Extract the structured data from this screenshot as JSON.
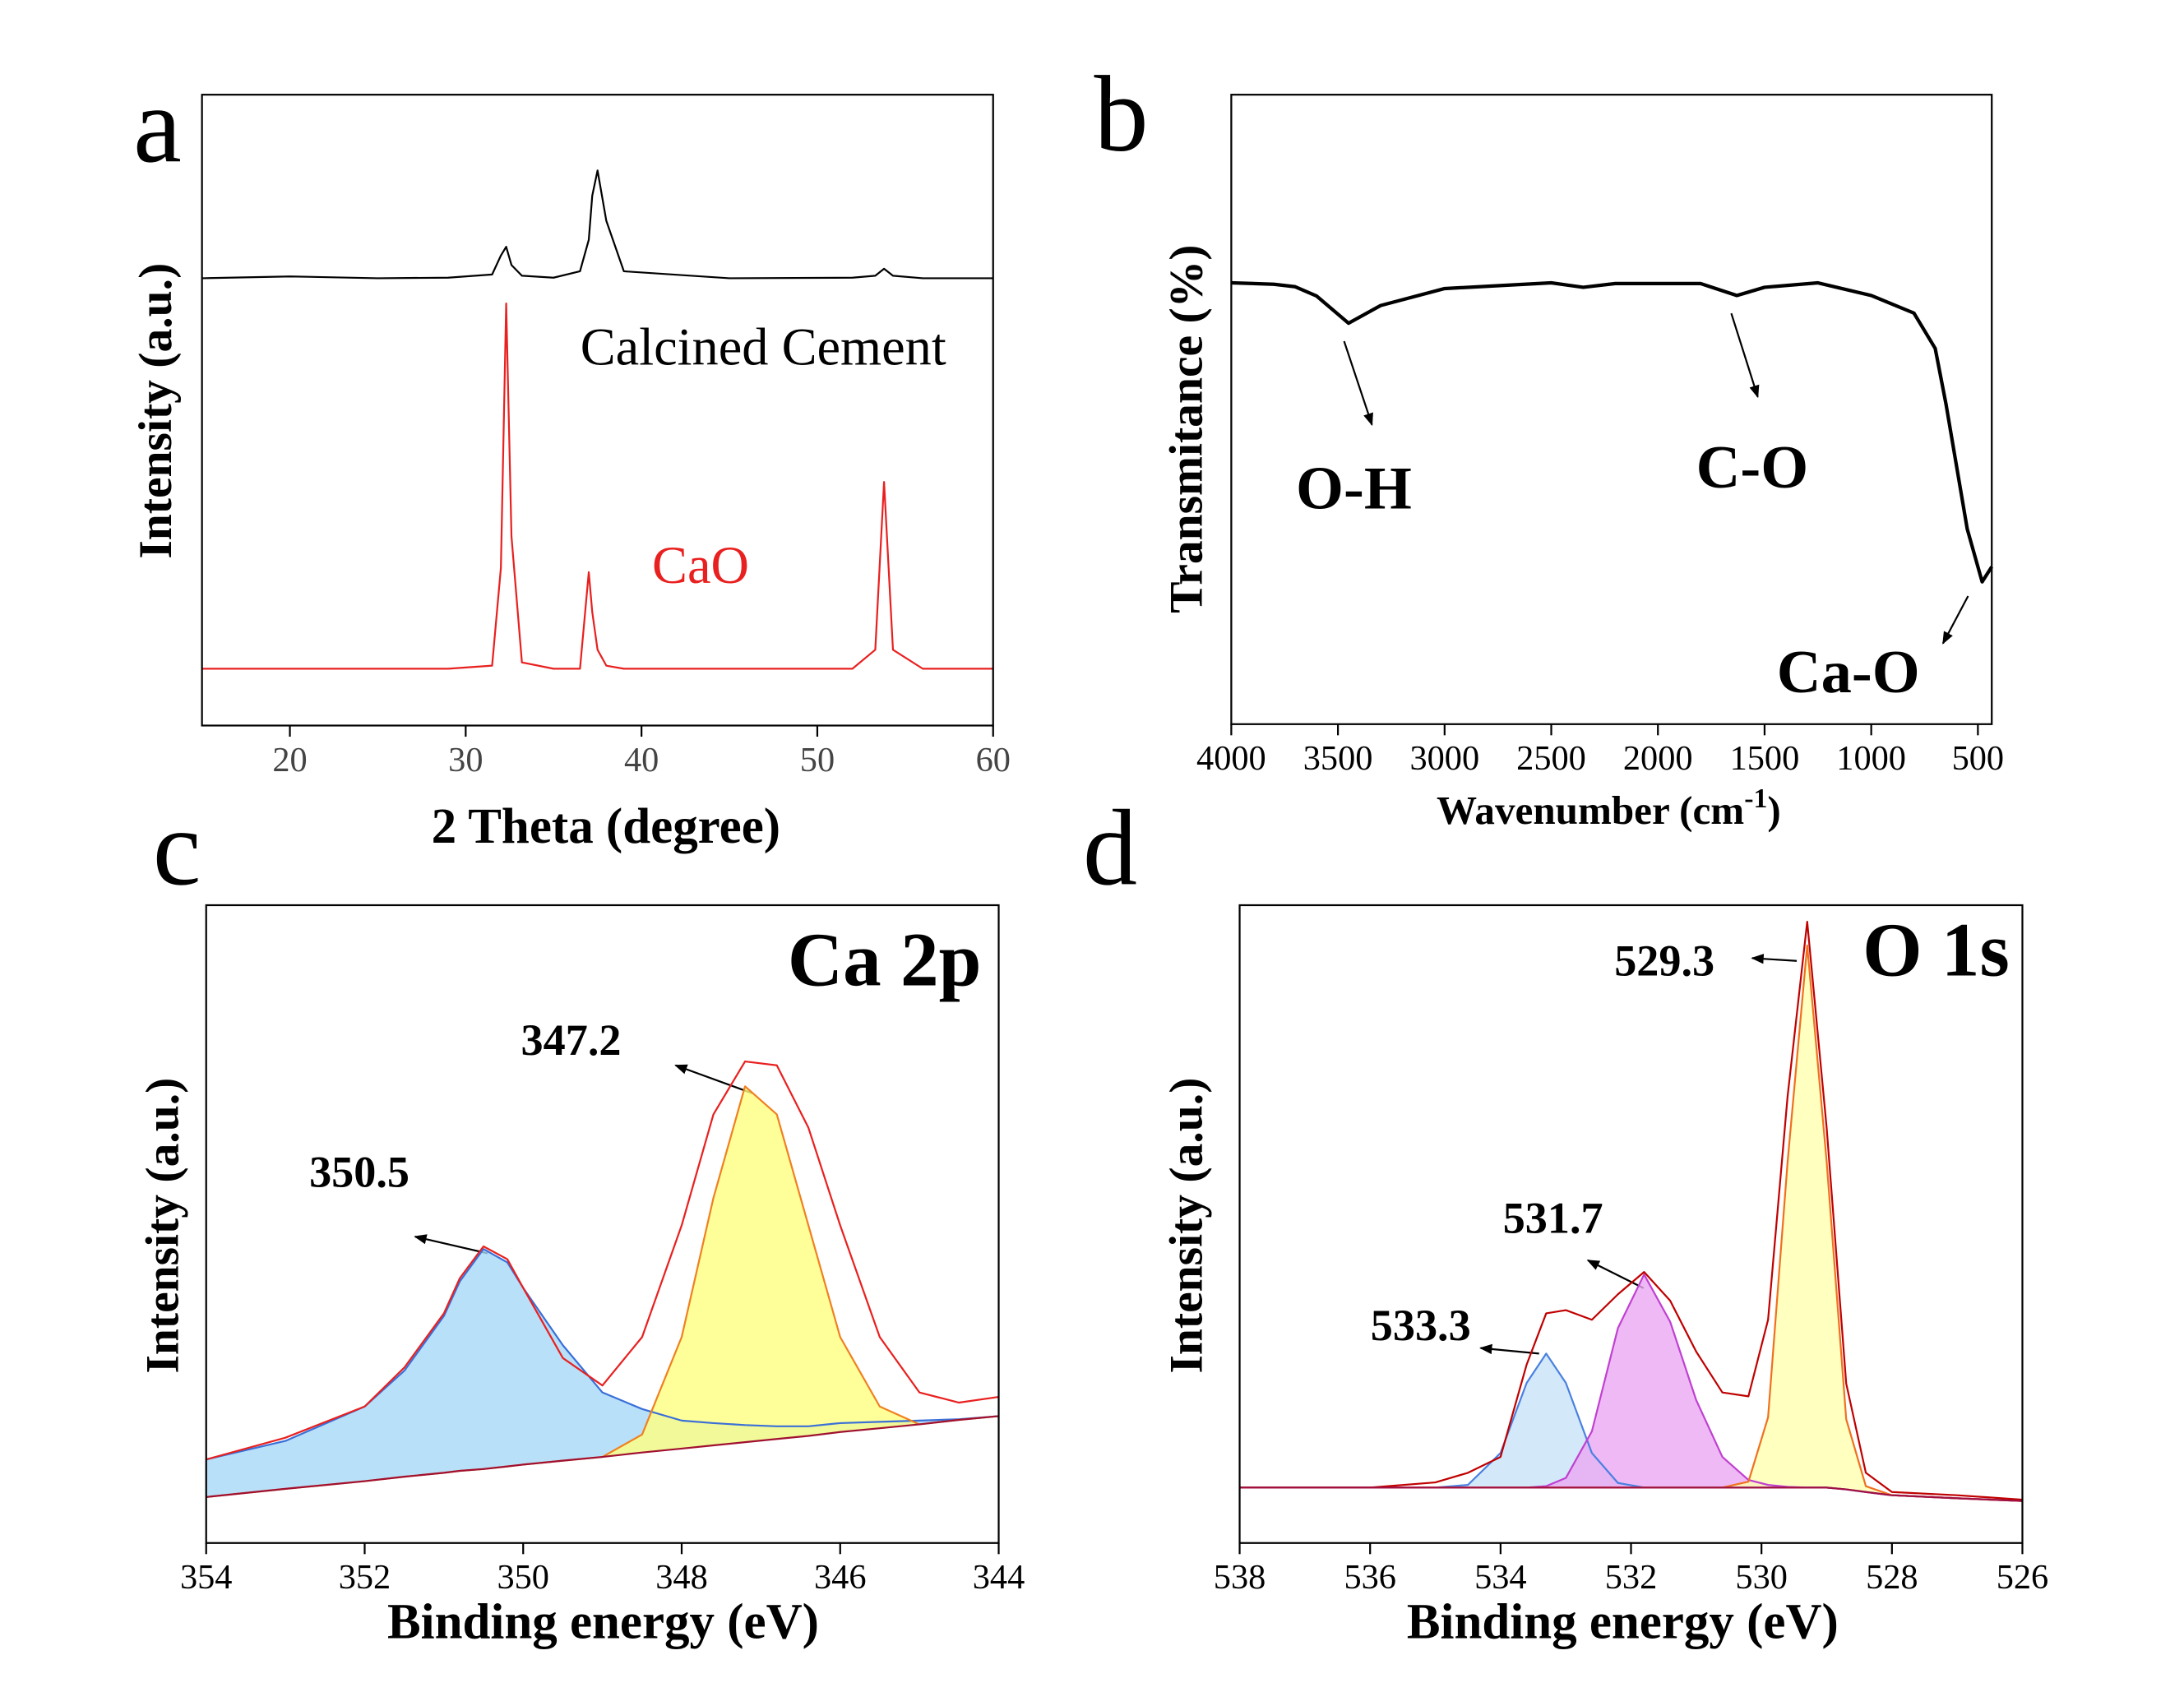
{
  "chart_data": [
    {
      "type": "line",
      "panel_label": "a",
      "xlabel": "2 Theta (degree)",
      "ylabel": "Intensity (a.u.)",
      "xlim": [
        15,
        60
      ],
      "xticks": [
        20,
        30,
        40,
        50,
        60
      ],
      "ylim": [
        0,
        100
      ],
      "x": [
        15,
        20,
        25,
        29,
        31.5,
        32.0,
        32.3,
        32.6,
        33.2,
        35,
        36.5,
        37.0,
        37.2,
        37.5,
        38.0,
        39,
        45,
        52,
        53.3,
        53.8,
        54.3,
        56,
        60
      ],
      "series": [
        {
          "color": "#000000",
          "values": [
            70.9,
            71.2,
            70.9,
            71,
            71.5,
            74.5,
            75.9,
            73,
            71.3,
            71,
            72,
            77,
            84,
            88,
            80,
            72,
            70.9,
            71,
            71.3,
            72.4,
            71.3,
            70.9,
            70.9
          ]
        },
        {
          "color": "#e8201f",
          "values": [
            9,
            9,
            9,
            9,
            9.5,
            25,
            66.9,
            30,
            10,
            9,
            9,
            24.3,
            18,
            12,
            9.5,
            9,
            9,
            9,
            12,
            38.6,
            12,
            9,
            9
          ]
        }
      ],
      "annotations": [
        {
          "text": "Calcined Cement",
          "color": "#000000"
        },
        {
          "text": "CaO",
          "color": "#e8201f"
        }
      ]
    },
    {
      "type": "line",
      "panel_label": "b",
      "xlabel": "Wavenumber (cm",
      "xlabel_sup": "-1",
      "xlabel_end": ")",
      "ylabel": "Transmitance (%)",
      "xlim": [
        4000,
        435
      ],
      "xticks": [
        4000,
        3500,
        3000,
        2500,
        2000,
        1500,
        1000,
        500
      ],
      "ylim": [
        0,
        100
      ],
      "x": [
        4000,
        3800,
        3700,
        3600,
        3450,
        3300,
        3000,
        2500,
        2350,
        2200,
        1800,
        1630,
        1500,
        1250,
        1000,
        800,
        700,
        650,
        550,
        480,
        435
      ],
      "series": [
        {
          "color": "#000000",
          "values": [
            70.1,
            69.9,
            69.5,
            68,
            63.7,
            66.5,
            69.2,
            70.1,
            69.4,
            70,
            70,
            68.1,
            69.4,
            70.1,
            68.1,
            65.3,
            59.7,
            50.9,
            31,
            22.6,
            25
          ]
        }
      ],
      "annotations": [
        {
          "text": "O-H",
          "color": "#000000"
        },
        {
          "text": "C-O",
          "color": "#000000"
        },
        {
          "text": "Ca-O",
          "color": "#000000"
        }
      ]
    },
    {
      "type": "area",
      "panel_label": "c",
      "xlabel": "Binding energy (eV)",
      "ylabel": "Intensity (a.u.)",
      "xlim": [
        354,
        344
      ],
      "xticks": [
        354,
        352,
        350,
        348,
        346,
        344
      ],
      "ylim": [
        0,
        100
      ],
      "x": [
        354,
        353,
        352,
        351.5,
        351,
        350.8,
        350.5,
        350.2,
        350,
        349.5,
        349,
        348.5,
        348,
        347.6,
        347.2,
        346.8,
        346.4,
        346,
        345.5,
        345,
        344.5,
        344
      ],
      "series": [
        {
          "color": "#3a6fd8",
          "fill": "#a8d8f8",
          "values": [
            13.1,
            16,
            21.4,
            27,
            35.6,
            41,
            46.1,
            44,
            40,
            31,
            23.6,
            21,
            19.2,
            18.8,
            18.5,
            18.3,
            18.3,
            18.8,
            19,
            19.2,
            19.4,
            19.9
          ]
        },
        {
          "color": "#f08020",
          "fill": "#ffff80",
          "values": [
            7.2,
            8.5,
            9.7,
            10.4,
            11,
            11.3,
            11.6,
            12,
            12.3,
            12.9,
            13.5,
            17,
            32.3,
            54.1,
            71.6,
            67.2,
            49.8,
            32.3,
            21.4,
            18.6,
            19.3,
            19.9
          ]
        },
        {
          "color": "#e8201f",
          "values": [
            13.1,
            16.5,
            21.4,
            27.5,
            36,
            41.5,
            46.5,
            44.5,
            40,
            29,
            24.7,
            32.3,
            49.8,
            67.2,
            75.5,
            74.9,
            65.1,
            49.8,
            32.3,
            23.6,
            22,
            22.9
          ]
        },
        {
          "color": "#a01030",
          "values": [
            7.2,
            8.5,
            9.7,
            10.4,
            11,
            11.3,
            11.6,
            12,
            12.3,
            12.9,
            13.5,
            14.2,
            14.8,
            15.3,
            15.8,
            16.3,
            16.8,
            17.4,
            18,
            18.6,
            19.3,
            19.9
          ]
        }
      ],
      "annotations": [
        {
          "text": "Ca 2p",
          "color": "#000000"
        },
        {
          "text": "347.2",
          "color": "#000000"
        },
        {
          "text": "350.5",
          "color": "#000000"
        }
      ]
    },
    {
      "type": "area",
      "panel_label": "d",
      "xlabel": "Binding energy (eV)",
      "ylabel": "Intensity (a.u.)",
      "xlim": [
        538,
        526
      ],
      "xticks": [
        538,
        536,
        534,
        532,
        530,
        528,
        526
      ],
      "ylim": [
        0,
        100
      ],
      "x": [
        538,
        536,
        535,
        534.5,
        534,
        533.6,
        533.3,
        533,
        532.6,
        532.2,
        531.8,
        531.4,
        531,
        530.6,
        530.2,
        529.9,
        529.6,
        529.3,
        529,
        528.7,
        528.4,
        528,
        527,
        526
      ],
      "series": [
        {
          "color": "#4a80e0",
          "fill": "#c8e4f8",
          "values": [
            8.7,
            8.7,
            8.7,
            9.1,
            14.1,
            25.1,
            29.7,
            25.1,
            14.1,
            9.4,
            8.7,
            8.7,
            8.7,
            8.7,
            8.7,
            8.7,
            8.7,
            8.7,
            8.7,
            8.4,
            8,
            7.5,
            7,
            6.6
          ]
        },
        {
          "color": "#c040d0",
          "fill": "#eaa8f2",
          "values": [
            8.7,
            8.7,
            8.7,
            8.7,
            8.7,
            8.7,
            8.9,
            10.2,
            17.5,
            33.7,
            42.1,
            34.7,
            22.4,
            13.5,
            9.9,
            9.1,
            8.8,
            8.7,
            8.7,
            8.4,
            8,
            7.5,
            7,
            6.6
          ]
        },
        {
          "color": "#f07020",
          "fill": "#ffffb0",
          "values": [
            8.7,
            8.7,
            8.7,
            8.7,
            8.7,
            8.7,
            8.7,
            8.7,
            8.7,
            8.7,
            8.7,
            8.7,
            8.7,
            8.7,
            9.6,
            19.7,
            59.7,
            93.7,
            59.7,
            19.4,
            8.9,
            7.5,
            7,
            6.6
          ]
        },
        {
          "color": "#c00000",
          "values": [
            8.7,
            8.7,
            9.5,
            11,
            13.5,
            28,
            36,
            36.5,
            35,
            39,
            42.5,
            38,
            30,
            23.6,
            23,
            35,
            70,
            97.4,
            65,
            25,
            11,
            8,
            7.5,
            6.8
          ]
        },
        {
          "color": "#a01040",
          "values": [
            8.7,
            8.7,
            8.7,
            8.7,
            8.7,
            8.7,
            8.7,
            8.7,
            8.7,
            8.7,
            8.7,
            8.7,
            8.7,
            8.7,
            8.7,
            8.7,
            8.7,
            8.7,
            8.7,
            8.4,
            8,
            7.5,
            7,
            6.6
          ]
        }
      ],
      "annotations": [
        {
          "text": "O 1s",
          "color": "#000000"
        },
        {
          "text": "529.3",
          "color": "#000000"
        },
        {
          "text": "531.7",
          "color": "#000000"
        },
        {
          "text": "533.3",
          "color": "#000000"
        }
      ]
    }
  ]
}
